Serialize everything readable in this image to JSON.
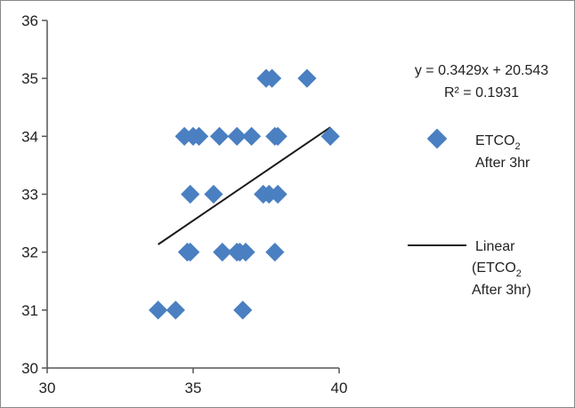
{
  "chart_data": {
    "type": "scatter",
    "title": "",
    "xlabel": "",
    "ylabel": "",
    "xlim": [
      30,
      40
    ],
    "ylim": [
      30,
      36
    ],
    "x_ticks": [
      "30",
      "35",
      "40"
    ],
    "y_ticks": [
      "30",
      "31",
      "32",
      "33",
      "34",
      "35",
      "36"
    ],
    "grid": false,
    "legend_position": "right",
    "colors": {
      "marker": "#4a7fc1",
      "trendline": "#1a1a1a",
      "axis": "#555555",
      "border": "#8a8a8a"
    },
    "series": [
      {
        "name": "ETCO2 After 3hr",
        "legend_main": "ETCO",
        "legend_sub": "2",
        "legend_line2": "After 3hr",
        "points": [
          [
            33.8,
            31
          ],
          [
            34.4,
            31
          ],
          [
            36.7,
            31
          ],
          [
            34.8,
            32
          ],
          [
            34.9,
            32
          ],
          [
            36.0,
            32
          ],
          [
            36.5,
            32
          ],
          [
            36.6,
            32
          ],
          [
            36.8,
            32
          ],
          [
            37.8,
            32
          ],
          [
            34.9,
            33
          ],
          [
            35.7,
            33
          ],
          [
            37.4,
            33
          ],
          [
            37.6,
            33
          ],
          [
            37.9,
            33
          ],
          [
            34.7,
            34
          ],
          [
            35.0,
            34
          ],
          [
            35.2,
            34
          ],
          [
            35.9,
            34
          ],
          [
            36.5,
            34
          ],
          [
            37.0,
            34
          ],
          [
            37.8,
            34
          ],
          [
            37.9,
            34
          ],
          [
            39.7,
            34
          ],
          [
            37.5,
            35
          ],
          [
            37.7,
            35
          ],
          [
            38.9,
            35
          ]
        ]
      }
    ],
    "trendline": {
      "name": "Linear (ETCO2 After 3hr)",
      "legend_line1": "Linear",
      "legend_line2_main": "(ETCO",
      "legend_line2_sub": "2",
      "legend_line3": "After 3hr)",
      "slope": 0.3429,
      "intercept": 20.543,
      "x_range": [
        33.8,
        39.7
      ],
      "equation": "y = 0.3429x + 20.543",
      "r_squared": "R² = 0.1931"
    }
  }
}
